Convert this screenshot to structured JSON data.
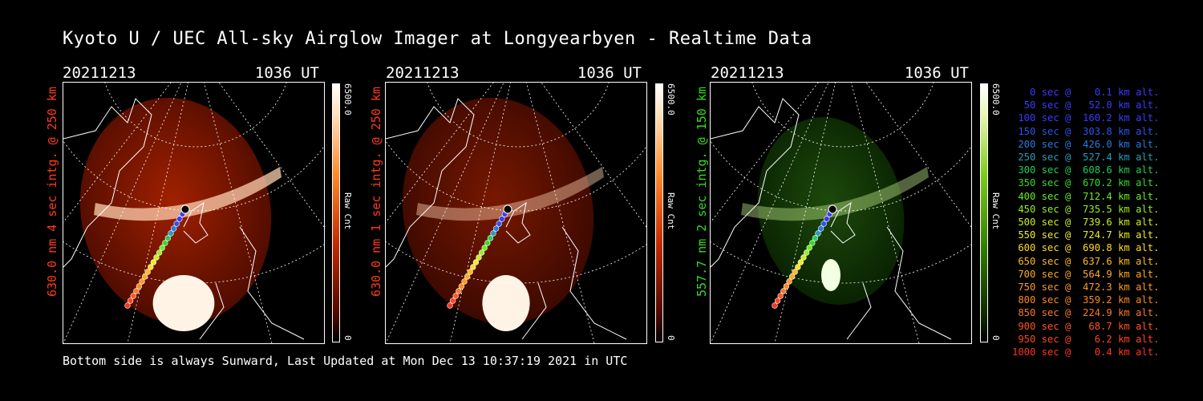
{
  "title": "Kyoto U / UEC All-sky Airglow Imager at Longyearbyen - Realtime Data",
  "panels": [
    {
      "date": "20211213",
      "time": "1036 UT",
      "channel_label": "630.0 nm 4 sec intg. @ 250 km",
      "label_color": "#ff3a1a",
      "cbar_max": "6500.0",
      "cbar_min": "0",
      "cbar_title": "Raw Cnt",
      "scheme": "red",
      "brightness": 0.9
    },
    {
      "date": "20211213",
      "time": "1036 UT",
      "channel_label": "630.0 nm 1 sec intg. @ 250 km",
      "label_color": "#ff3a1a",
      "cbar_max": "6500.0",
      "cbar_min": "0",
      "cbar_title": "Raw Cnt",
      "scheme": "red",
      "brightness": 0.35
    },
    {
      "date": "20211213",
      "time": "1036 UT",
      "channel_label": "557.7 nm 2 sec intg. @ 150 km",
      "label_color": "#33dd22",
      "cbar_max": "6500.0",
      "cbar_min": "0",
      "cbar_title": "Raw Cnt",
      "scheme": "green",
      "brightness": 0.3
    }
  ],
  "footer": "Bottom side is always Sunward, Last Updated at Mon Dec 13 10:37:19 2021 in UTC",
  "legend": [
    {
      "text": "   0 sec @    0.1 km alt.",
      "color": "#3a3aff"
    },
    {
      "text": "  50 sec @   52.0 km alt.",
      "color": "#3a3aff"
    },
    {
      "text": " 100 sec @  160.2 km alt.",
      "color": "#3a3aff"
    },
    {
      "text": " 150 sec @  303.8 km alt.",
      "color": "#2a55ee"
    },
    {
      "text": " 200 sec @  426.0 km alt.",
      "color": "#2a7ae0"
    },
    {
      "text": " 250 sec @  527.4 km alt.",
      "color": "#22a0b8"
    },
    {
      "text": " 300 sec @  608.6 km alt.",
      "color": "#22cc55"
    },
    {
      "text": " 350 sec @  670.2 km alt.",
      "color": "#33dd22"
    },
    {
      "text": " 400 sec @  712.4 km alt.",
      "color": "#66ee22"
    },
    {
      "text": " 450 sec @  735.5 km alt.",
      "color": "#99ee22"
    },
    {
      "text": " 500 sec @  739.6 km alt.",
      "color": "#ccee22"
    },
    {
      "text": " 550 sec @  724.7 km alt.",
      "color": "#eeee22"
    },
    {
      "text": " 600 sec @  690.8 km alt.",
      "color": "#ffdd22"
    },
    {
      "text": " 650 sec @  637.6 km alt.",
      "color": "#ffbb22"
    },
    {
      "text": " 700 sec @  564.9 km alt.",
      "color": "#ffaa22"
    },
    {
      "text": " 750 sec @  472.3 km alt.",
      "color": "#ff9922"
    },
    {
      "text": " 800 sec @  359.2 km alt.",
      "color": "#ff8822"
    },
    {
      "text": " 850 sec @  224.9 km alt.",
      "color": "#ff7722"
    },
    {
      "text": " 900 sec @   68.7 km alt.",
      "color": "#ff5522"
    },
    {
      "text": " 950 sec @    6.2 km alt.",
      "color": "#ff4422"
    },
    {
      "text": "1000 sec @    0.4 km alt.",
      "color": "#ff3322"
    }
  ]
}
